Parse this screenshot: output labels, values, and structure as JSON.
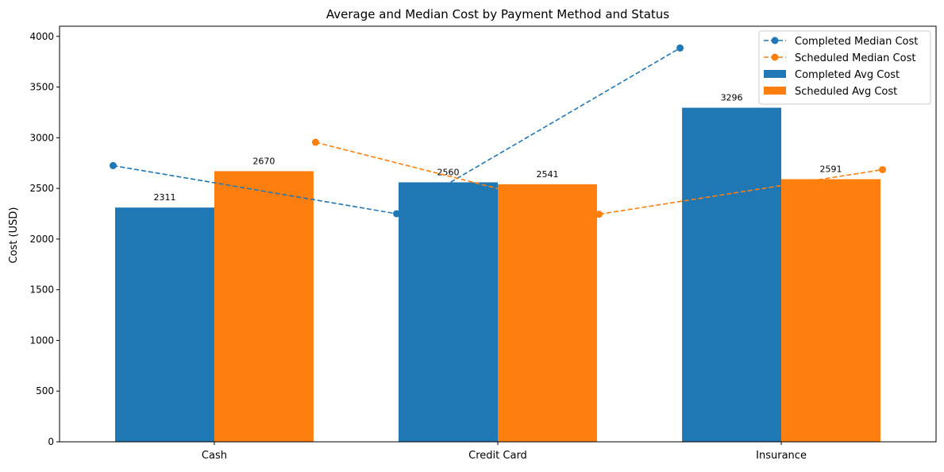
{
  "chart_data": {
    "type": "bar",
    "title": "Average and Median Cost by Payment Method and Status",
    "xlabel": "",
    "ylabel": "Cost (USD)",
    "categories": [
      "Cash",
      "Credit Card",
      "Insurance"
    ],
    "ylim": [
      0,
      4100
    ],
    "yticks": [
      0,
      500,
      1000,
      1500,
      2000,
      2500,
      3000,
      3500,
      4000
    ],
    "grid": false,
    "legend_position": "top-right",
    "series": [
      {
        "name": "Completed Avg Cost",
        "kind": "bar",
        "color": "#1f77b4",
        "values": [
          2311,
          2560,
          3296
        ],
        "labels": [
          "2311",
          "2560",
          "3296"
        ]
      },
      {
        "name": "Scheduled Avg Cost",
        "kind": "bar",
        "color": "#ff7f0e",
        "values": [
          2670,
          2541,
          2591
        ],
        "labels": [
          "2670",
          "2541",
          "2591"
        ]
      },
      {
        "name": "Completed Median Cost",
        "kind": "line",
        "style": "dashed",
        "marker": "circle",
        "color": "#1f77b4",
        "values": [
          2725,
          2250,
          3885
        ]
      },
      {
        "name": "Scheduled Median Cost",
        "kind": "line",
        "style": "dashed",
        "marker": "circle",
        "color": "#ff7f0e",
        "values": [
          2955,
          2245,
          2685
        ]
      }
    ],
    "legend_order": [
      "Completed Median Cost",
      "Scheduled Median Cost",
      "Completed Avg Cost",
      "Scheduled Avg Cost"
    ]
  }
}
